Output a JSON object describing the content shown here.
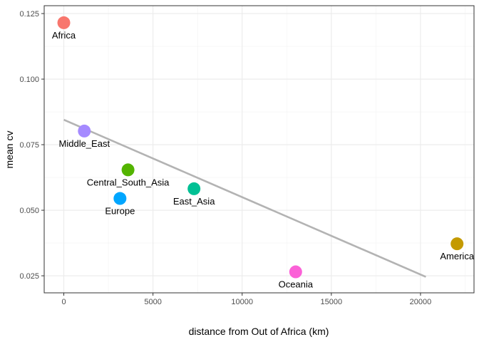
{
  "chart_data": {
    "type": "scatter",
    "xlabel": "distance from Out of Africa (km)",
    "ylabel": "mean cv",
    "xlim": [
      -1100,
      23000
    ],
    "ylim": [
      0.0185,
      0.128
    ],
    "x_ticks": [
      0,
      5000,
      10000,
      15000,
      20000
    ],
    "x_tick_labels": [
      "0",
      "5000",
      "10000",
      "15000",
      "20000"
    ],
    "y_ticks": [
      0.025,
      0.05,
      0.075,
      0.1,
      0.125
    ],
    "y_tick_labels": [
      "0.025",
      "0.050",
      "0.075",
      "0.100",
      "0.125"
    ],
    "grid": true,
    "legend": "none",
    "points": [
      {
        "label": "Africa",
        "x": 0,
        "y": 0.1215,
        "color": "#F8766D"
      },
      {
        "label": "Middle_East",
        "x": 1150,
        "y": 0.0802,
        "color": "#A58AFF"
      },
      {
        "label": "Central_South_Asia",
        "x": 3600,
        "y": 0.0654,
        "color": "#53B400"
      },
      {
        "label": "Europe",
        "x": 3150,
        "y": 0.0545,
        "color": "#00A6FF"
      },
      {
        "label": "East_Asia",
        "x": 7300,
        "y": 0.0582,
        "color": "#00C094"
      },
      {
        "label": "Oceania",
        "x": 13000,
        "y": 0.0265,
        "color": "#FB61D7"
      },
      {
        "label": "America",
        "x": 22050,
        "y": 0.0372,
        "color": "#C49A00"
      }
    ],
    "trend_line": {
      "x": [
        0,
        20300
      ],
      "y": [
        0.0845,
        0.0246
      ],
      "color": "#b3b3b3"
    }
  }
}
